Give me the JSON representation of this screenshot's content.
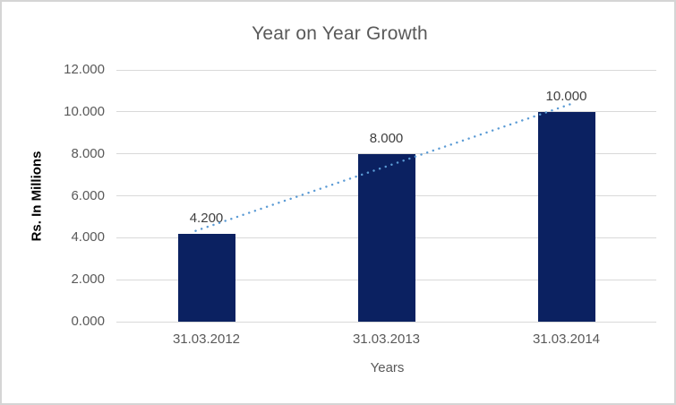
{
  "chart_data": {
    "type": "bar",
    "title": "Year on Year Growth",
    "xlabel": "Years",
    "ylabel": "Rs. In Millions",
    "categories": [
      "31.03.2012",
      "31.03.2013",
      "31.03.2014"
    ],
    "values": [
      4.2,
      8.0,
      10.0
    ],
    "data_labels": [
      "4.200",
      "8.000",
      "10.000"
    ],
    "y_ticks": [
      0,
      2,
      4,
      6,
      8,
      10,
      12
    ],
    "y_tick_labels": [
      "0.000",
      "2.000",
      "4.000",
      "6.000",
      "8.000",
      "10.000",
      "12.000"
    ],
    "ylim": [
      0,
      12
    ],
    "grid": "horizontal",
    "legend": "none",
    "trendline": {
      "type": "linear",
      "style": "dotted"
    },
    "colors": {
      "bar": "#0B2161",
      "trendline": "#5B9BD5",
      "gridline": "#D9D9D9",
      "title_text": "#595959",
      "tick_text": "#595959",
      "data_label_text": "#3F3F3F",
      "border": "#D5D5D5",
      "background": "#FFFFFF"
    }
  }
}
